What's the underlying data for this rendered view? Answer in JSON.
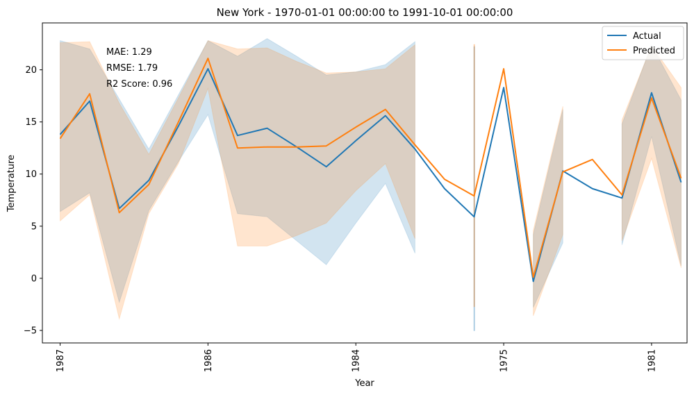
{
  "chart_data": {
    "type": "line",
    "title": "New York - 1970-01-01 00:00:00 to 1991-10-01 00:00:00",
    "xlabel": "Year",
    "ylabel": "Temperature",
    "ylim": [
      -6.2,
      24.5
    ],
    "yticks": [
      -5,
      0,
      5,
      10,
      15,
      20
    ],
    "xticks": [
      {
        "pos": 0,
        "label": "1987"
      },
      {
        "pos": 5,
        "label": "1986"
      },
      {
        "pos": 10,
        "label": "1984"
      },
      {
        "pos": 15,
        "label": "1975"
      },
      {
        "pos": 20,
        "label": "1981"
      }
    ],
    "xlim": [
      -0.6,
      21.2
    ],
    "legend": {
      "placement": "top-right"
    },
    "annotations": [
      "MAE: 1.29",
      "RMSE: 1.79",
      "R2 Score: 0.96"
    ],
    "colors": {
      "actual": "#1f77b4",
      "predicted": "#ff7f0e"
    },
    "series": [
      {
        "name": "Actual",
        "segments": [
          {
            "x": [
              0,
              1,
              2,
              3,
              4,
              5,
              6,
              7,
              8,
              9,
              10,
              11,
              12,
              13,
              14,
              15,
              16,
              17,
              18,
              19,
              20,
              21
            ],
            "y": [
              13.8,
              17.0,
              6.7,
              9.4,
              14.6,
              20.1,
              13.7,
              14.4,
              12.6,
              10.7,
              13.2,
              15.6,
              12.4,
              8.6,
              5.9,
              18.3,
              -0.3,
              10.3,
              8.6,
              7.7,
              17.8,
              9.2
            ]
          }
        ],
        "band_segments": [
          {
            "x": [
              0,
              1,
              2,
              3,
              4,
              5,
              6,
              7,
              8,
              9,
              10,
              11,
              12
            ],
            "lower": [
              6.4,
              8.2,
              -2.3,
              6.5,
              11.2,
              15.7,
              6.2,
              5.9,
              3.6,
              1.3,
              5.3,
              9.1,
              2.4
            ],
            "upper": [
              22.8,
              22.0,
              17.2,
              12.4,
              17.6,
              22.8,
              21.3,
              23.0,
              21.3,
              19.5,
              19.8,
              20.5,
              22.7
            ]
          },
          {
            "x": [
              14,
              14.01
            ],
            "lower": [
              -5.0,
              -5.0
            ],
            "upper": [
              22.2,
              22.2
            ]
          },
          {
            "x": [
              16,
              17
            ],
            "lower": [
              -2.8,
              3.4
            ],
            "upper": [
              4.2,
              16.2
            ]
          },
          {
            "x": [
              19,
              20,
              21
            ],
            "lower": [
              3.2,
              13.6,
              1.2
            ],
            "upper": [
              14.8,
              22.4,
              17.1
            ]
          }
        ]
      },
      {
        "name": "Predicted",
        "segments": [
          {
            "x": [
              0,
              1,
              2,
              3,
              4,
              5,
              6,
              7,
              8,
              9,
              10,
              11,
              12,
              13,
              14,
              15,
              16,
              17,
              18,
              19,
              20,
              21
            ],
            "y": [
              13.4,
              17.7,
              6.3,
              9.0,
              15.0,
              21.1,
              12.5,
              12.6,
              12.6,
              12.7,
              14.5,
              16.2,
              12.8,
              9.5,
              7.9,
              20.1,
              0.1,
              10.2,
              11.4,
              8.0,
              17.3,
              9.6
            ]
          }
        ],
        "band_segments": [
          {
            "x": [
              0,
              1,
              2,
              3,
              4,
              5,
              6,
              7,
              8,
              9,
              10,
              11,
              12
            ],
            "lower": [
              5.5,
              8.0,
              -3.9,
              6.2,
              11.0,
              18.2,
              3.1,
              3.1,
              4.1,
              5.3,
              8.4,
              11.0,
              3.8
            ],
            "upper": [
              22.6,
              22.7,
              16.8,
              11.9,
              17.3,
              22.8,
              22.0,
              22.1,
              20.8,
              19.7,
              19.8,
              20.1,
              22.4
            ]
          },
          {
            "x": [
              14,
              14.01
            ],
            "lower": [
              -2.7,
              -2.7
            ],
            "upper": [
              22.4,
              22.4
            ]
          },
          {
            "x": [
              16,
              17
            ],
            "lower": [
              -3.6,
              4.2
            ],
            "upper": [
              4.6,
              16.5
            ]
          },
          {
            "x": [
              19,
              20,
              21
            ],
            "lower": [
              3.6,
              11.5,
              1.0
            ],
            "upper": [
              15.2,
              22.3,
              18.3
            ]
          }
        ]
      }
    ]
  }
}
